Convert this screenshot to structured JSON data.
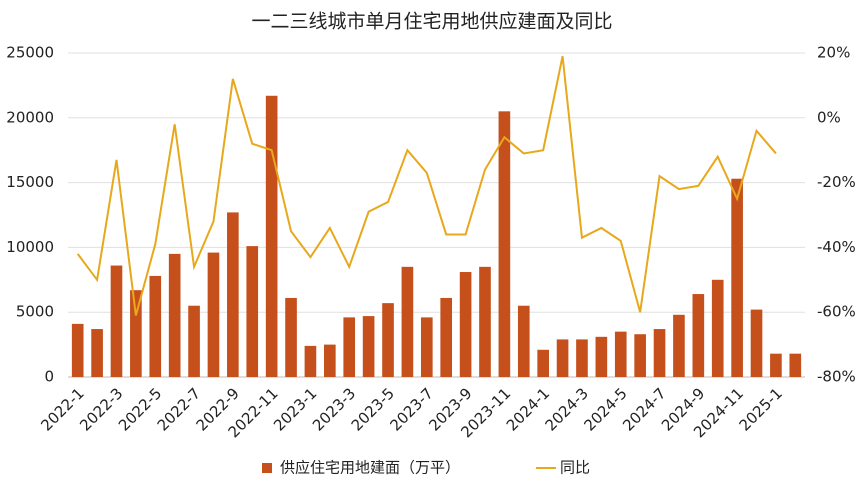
{
  "chart_data": {
    "type": "bar_line",
    "title": "一二三线城市单月住宅用地供应建面及同比",
    "categories": [
      "2022-1",
      null,
      "2022-3",
      null,
      "2022-5",
      null,
      "2022-7",
      null,
      "2022-9",
      null,
      "2022-11",
      null,
      "2023-1",
      null,
      "2023-3",
      null,
      "2023-5",
      null,
      "2023-7",
      null,
      "2023-9",
      null,
      "2023-11",
      null,
      "2024-1",
      null,
      "2024-3",
      null,
      "2024-5",
      null,
      "2024-7",
      null,
      "2024-9",
      null,
      "2024-11",
      null,
      "2025-1",
      null
    ],
    "series": [
      {
        "name": "供应住宅用地建面（万平）",
        "color": "#c5501c",
        "type": "bar",
        "values": [
          4100,
          3700,
          8600,
          6700,
          7800,
          9500,
          5500,
          9600,
          12700,
          10100,
          21700,
          6100,
          2400,
          2500,
          4600,
          4700,
          5700,
          8500,
          4600,
          6100,
          8100,
          8500,
          20500,
          5500,
          2100,
          2900,
          2900,
          3100,
          3500,
          3300,
          3700,
          4800,
          6400,
          7500,
          15300,
          5200,
          1800,
          1800
        ]
      },
      {
        "name": "同比",
        "color": "#e8a81c",
        "type": "line",
        "axis": "y2",
        "values": [
          -42,
          -50,
          -13,
          -61,
          -39,
          -2,
          -46,
          -32,
          12,
          -8,
          -10,
          -35,
          -43,
          -34,
          -46,
          -29,
          -26,
          -10,
          -17,
          -36,
          -36,
          -16,
          -6,
          -11,
          -10,
          19,
          -37,
          -34,
          -38,
          -60,
          -18,
          -22,
          -21,
          -12,
          -25,
          -4,
          -11,
          null
        ]
      }
    ],
    "ylim": [
      0,
      25000
    ],
    "yticks": [
      0,
      5000,
      10000,
      15000,
      20000,
      25000
    ],
    "y2lim": [
      -80,
      20
    ],
    "y2ticks": [
      {
        "value": -80,
        "label": "-80%"
      },
      {
        "value": -60,
        "label": "-60%"
      },
      {
        "value": -40,
        "label": "-40%"
      },
      {
        "value": -20,
        "label": "-20%"
      },
      {
        "value": 0,
        "label": "0%"
      },
      {
        "value": 20,
        "label": "20%"
      }
    ],
    "grid": true,
    "legend": "bottom"
  }
}
